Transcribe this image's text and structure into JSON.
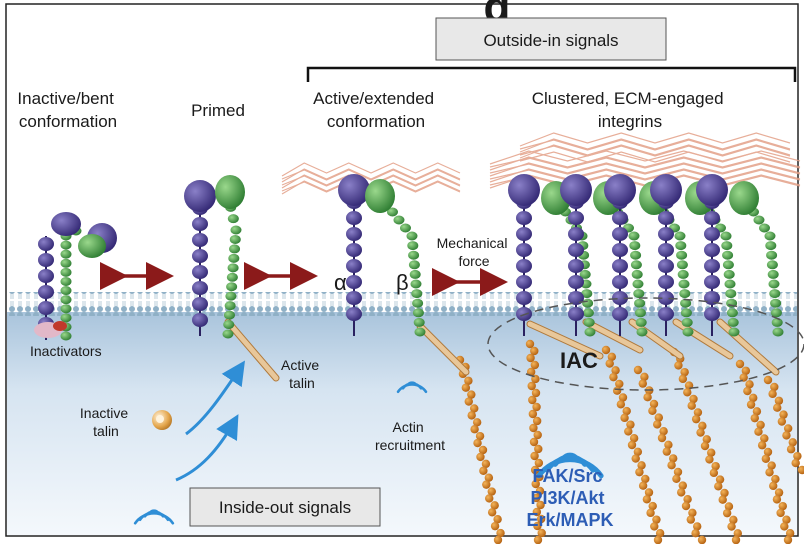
{
  "title_fragment": "g",
  "outside_in_box": "Outside-in signals",
  "inside_out_box": "Inside-out signals",
  "stages": {
    "inactive": [
      "Inactive/bent",
      "conformation"
    ],
    "primed": "Primed",
    "active": [
      "Active/extended",
      "conformation"
    ],
    "clustered": [
      "Clustered, ECM-engaged",
      "integrins"
    ]
  },
  "labels": {
    "inactivators": "Inactivators",
    "active_talin": [
      "Active",
      "talin"
    ],
    "inactive_talin": [
      "Inactive",
      "talin"
    ],
    "alpha": "α",
    "beta": "β",
    "mechanical_force": [
      "Mechanical",
      "force"
    ],
    "actin_recruitment": [
      "Actin",
      "recruitment"
    ],
    "iac": "IAC",
    "signals": [
      "FAK/Src",
      "PI3K/Akt",
      "Erk/MAPK"
    ]
  },
  "colors": {
    "alpha_subunit": "#4b3f93",
    "beta_subunit": "#3f9a45",
    "arrow_red": "#8b1a1a",
    "arrow_blue": "#2f8ed6",
    "actin": "#d9801c",
    "talin": "#c8a070",
    "membrane": "#9fb8c8",
    "cytoplasm": "#d9e6f3",
    "ecm": "#e3a088",
    "signal_text": "#2d5db5"
  }
}
